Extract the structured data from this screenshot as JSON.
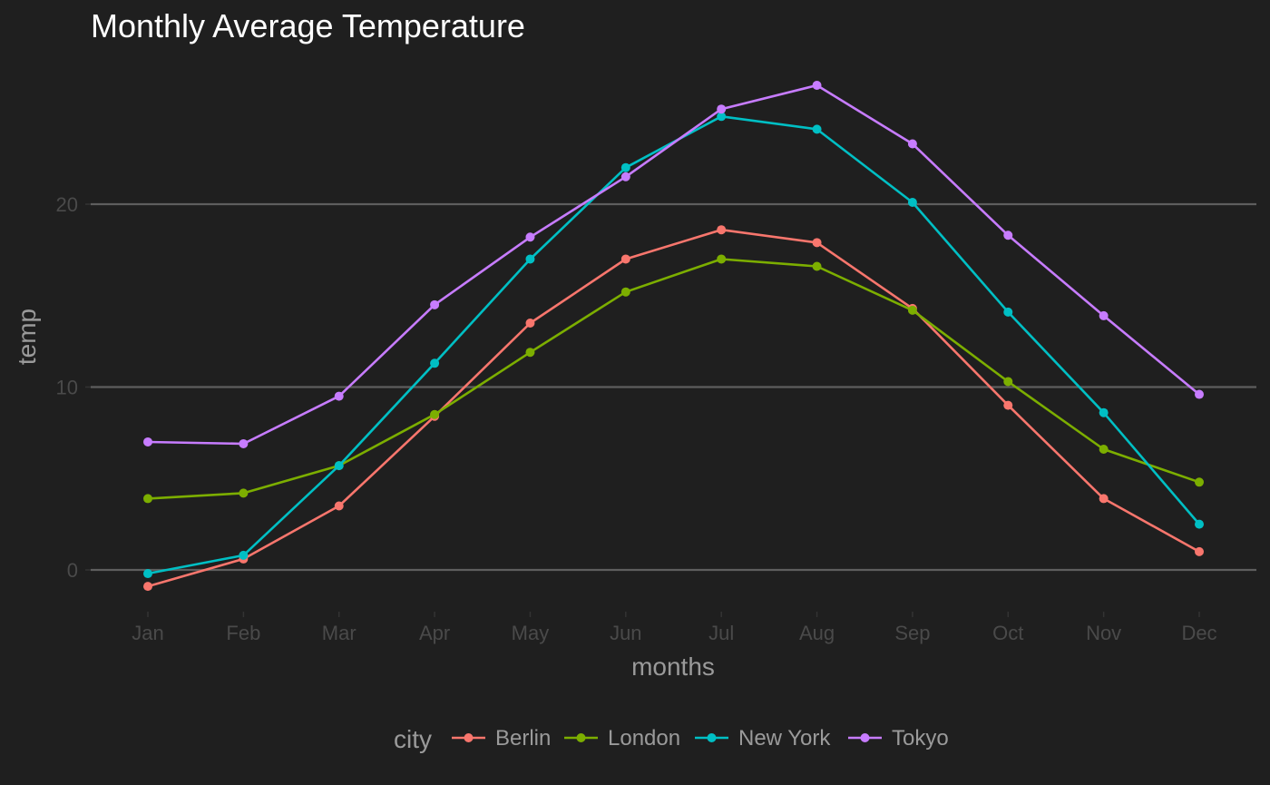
{
  "chart_data": {
    "type": "line",
    "title": "Monthly Average Temperature",
    "xlabel": "months",
    "ylabel": "temp",
    "categories": [
      "Jan",
      "Feb",
      "Mar",
      "Apr",
      "May",
      "Jun",
      "Jul",
      "Aug",
      "Sep",
      "Oct",
      "Nov",
      "Dec"
    ],
    "ylim": [
      -2.8,
      27.5
    ],
    "yticks": [
      0,
      10,
      20
    ],
    "ytick_labels": [
      "0",
      "10",
      "20"
    ],
    "grid": true,
    "legend": {
      "title": "city",
      "position": "bottom"
    },
    "series": [
      {
        "name": "Berlin",
        "color": "#f8766d",
        "values": [
          -0.9,
          0.6,
          3.5,
          8.4,
          13.5,
          17.0,
          18.6,
          17.9,
          14.3,
          9.0,
          3.9,
          1.0
        ]
      },
      {
        "name": "London",
        "color": "#7cae00",
        "values": [
          3.9,
          4.2,
          5.7,
          8.5,
          11.9,
          15.2,
          17.0,
          16.6,
          14.2,
          10.3,
          6.6,
          4.8
        ]
      },
      {
        "name": "New York",
        "color": "#00bfc4",
        "values": [
          -0.2,
          0.8,
          5.7,
          11.3,
          17.0,
          22.0,
          24.8,
          24.1,
          20.1,
          14.1,
          8.6,
          2.5
        ]
      },
      {
        "name": "Tokyo",
        "color": "#c77cff",
        "values": [
          7.0,
          6.9,
          9.5,
          14.5,
          18.2,
          21.5,
          25.2,
          26.5,
          23.3,
          18.3,
          13.9,
          9.6
        ]
      }
    ]
  }
}
